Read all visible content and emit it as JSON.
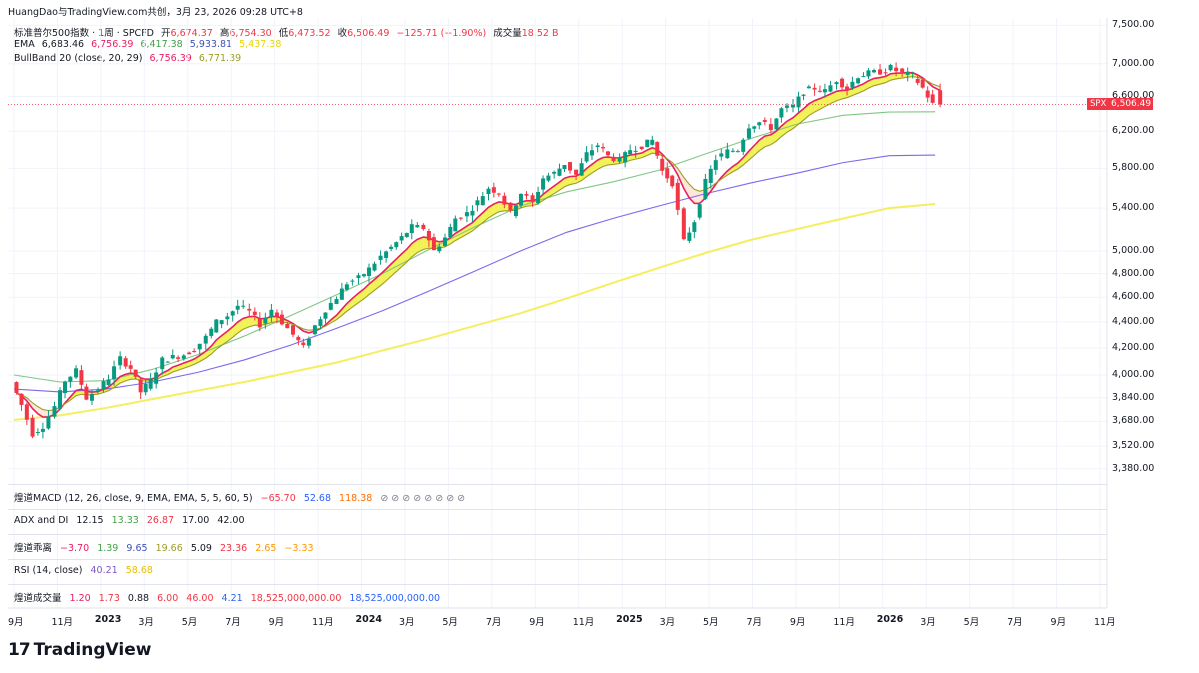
{
  "header": {
    "attribution": "HuangDao与TradingView.com共创，3月 23, 2026 09:28 UTC+8"
  },
  "legend": {
    "symbol": "标准普尔500指数 · 1周 · SPCFD",
    "open_label": "开",
    "open": "6,674.37",
    "high_label": "高",
    "high": "6,754.30",
    "low_label": "低",
    "low": "6,473.52",
    "close_label": "收",
    "close": "6,506.49",
    "change": "−125.71 (−1.90%)",
    "volume_label": "成交量",
    "volume": "18.52 B",
    "ema_label": "EMA",
    "ema_values": [
      "6,683.46",
      "6,756.39",
      "6,417.38",
      "5,933.81",
      "5,437.38"
    ],
    "bull_label": "BullBand 20 (close, 20, 29)",
    "bull_values": [
      "6,756.39",
      "6,771.39"
    ]
  },
  "colors": {
    "up": "#089981",
    "down": "#f23645",
    "ema1": "#e91e63",
    "ema2": "#9e9d24",
    "ema3": "#81c784",
    "ema4": "#7b68ee",
    "ema5": "#f5ee5f",
    "band": "#eef03a",
    "band_bear": "#fce4d6",
    "grid": "#f0f3fa"
  },
  "price_axis": [
    "7,500.00",
    "7,000.00",
    "6,600.00",
    "6,200.00",
    "5,800.00",
    "5,400.00",
    "5,000.00",
    "4,800.00",
    "4,600.00",
    "4,400.00",
    "4,200.00",
    "4,000.00",
    "3,840.00",
    "3,680.00",
    "3,520.00",
    "3,380.00"
  ],
  "last_price": {
    "symbol": "SPX",
    "value": "6,506.49"
  },
  "time_axis": [
    {
      "label": "9月",
      "year": false
    },
    {
      "label": "11月",
      "year": false
    },
    {
      "label": "2023",
      "year": true
    },
    {
      "label": "3月",
      "year": false
    },
    {
      "label": "5月",
      "year": false
    },
    {
      "label": "7月",
      "year": false
    },
    {
      "label": "9月",
      "year": false
    },
    {
      "label": "11月",
      "year": false
    },
    {
      "label": "2024",
      "year": true
    },
    {
      "label": "3月",
      "year": false
    },
    {
      "label": "5月",
      "year": false
    },
    {
      "label": "7月",
      "year": false
    },
    {
      "label": "9月",
      "year": false
    },
    {
      "label": "11月",
      "year": false
    },
    {
      "label": "2025",
      "year": true
    },
    {
      "label": "3月",
      "year": false
    },
    {
      "label": "5月",
      "year": false
    },
    {
      "label": "7月",
      "year": false
    },
    {
      "label": "9月",
      "year": false
    },
    {
      "label": "11月",
      "year": false
    },
    {
      "label": "2026",
      "year": true
    },
    {
      "label": "3月",
      "year": false
    },
    {
      "label": "5月",
      "year": false
    },
    {
      "label": "7月",
      "year": false
    },
    {
      "label": "9月",
      "year": false
    },
    {
      "label": "11月",
      "year": false
    }
  ],
  "panes": {
    "macd": {
      "label": "煌道MACD (12, 26, close, 9, EMA, EMA, 5, 5, 60, 5)",
      "values": [
        "−65.70",
        "52.68",
        "118.38"
      ],
      "empties": "⊘ ⊘ ⊘ ⊘ ⊘ ⊘ ⊘ ⊘"
    },
    "adx": {
      "label": "ADX and DI",
      "values": [
        "12.15",
        "13.33",
        "26.87",
        "17.00",
        "42.00"
      ]
    },
    "bias": {
      "label": "煌道乖离",
      "values": [
        "−3.70",
        "1.39",
        "9.65",
        "19.66",
        "5.09",
        "23.36",
        "2.65",
        "−3.33"
      ]
    },
    "rsi": {
      "label": "RSI (14, close)",
      "values": [
        "40.21",
        "58.68"
      ]
    },
    "vol": {
      "label": "煌道成交量",
      "values": [
        "1.20",
        "1.73",
        "0.88",
        "6.00",
        "46.00",
        "4.21",
        "18,525,000,000.00",
        "18,525,000,000.00"
      ]
    }
  },
  "brand": {
    "logo": "17",
    "name": "TradingView"
  },
  "chart_data": {
    "type": "candlestick",
    "title": "标准普尔500指数 · 1周 · SPCFD",
    "ylim": [
      3300,
      7600
    ],
    "yscale": "log",
    "x_start": "2022-09",
    "x_end": "2026-03",
    "close_series": [
      {
        "t": "2022-09-01",
        "v": 3950
      },
      {
        "t": "2022-09-15",
        "v": 3790
      },
      {
        "t": "2022-10-01",
        "v": 3600
      },
      {
        "t": "2022-10-15",
        "v": 3650
      },
      {
        "t": "2022-11-01",
        "v": 3780
      },
      {
        "t": "2022-11-15",
        "v": 3960
      },
      {
        "t": "2022-12-01",
        "v": 4030
      },
      {
        "t": "2022-12-15",
        "v": 3840
      },
      {
        "t": "2023-01-01",
        "v": 3900
      },
      {
        "t": "2023-01-15",
        "v": 3980
      },
      {
        "t": "2023-02-01",
        "v": 4120
      },
      {
        "t": "2023-02-15",
        "v": 4050
      },
      {
        "t": "2023-03-01",
        "v": 3880
      },
      {
        "t": "2023-03-15",
        "v": 3960
      },
      {
        "t": "2023-04-01",
        "v": 4110
      },
      {
        "t": "2023-04-15",
        "v": 4130
      },
      {
        "t": "2023-05-01",
        "v": 4150
      },
      {
        "t": "2023-05-15",
        "v": 4190
      },
      {
        "t": "2023-06-01",
        "v": 4280
      },
      {
        "t": "2023-06-15",
        "v": 4400
      },
      {
        "t": "2023-07-01",
        "v": 4450
      },
      {
        "t": "2023-07-15",
        "v": 4530
      },
      {
        "t": "2023-08-01",
        "v": 4480
      },
      {
        "t": "2023-08-15",
        "v": 4380
      },
      {
        "t": "2023-09-01",
        "v": 4500
      },
      {
        "t": "2023-09-15",
        "v": 4400
      },
      {
        "t": "2023-10-01",
        "v": 4300
      },
      {
        "t": "2023-10-15",
        "v": 4200
      },
      {
        "t": "2023-11-01",
        "v": 4370
      },
      {
        "t": "2023-11-15",
        "v": 4500
      },
      {
        "t": "2023-12-01",
        "v": 4600
      },
      {
        "t": "2023-12-15",
        "v": 4720
      },
      {
        "t": "2024-01-01",
        "v": 4760
      },
      {
        "t": "2024-01-15",
        "v": 4840
      },
      {
        "t": "2024-02-01",
        "v": 4950
      },
      {
        "t": "2024-02-15",
        "v": 5030
      },
      {
        "t": "2024-03-01",
        "v": 5120
      },
      {
        "t": "2024-03-15",
        "v": 5220
      },
      {
        "t": "2024-04-01",
        "v": 5210
      },
      {
        "t": "2024-04-15",
        "v": 5000
      },
      {
        "t": "2024-05-01",
        "v": 5120
      },
      {
        "t": "2024-05-15",
        "v": 5300
      },
      {
        "t": "2024-06-01",
        "v": 5350
      },
      {
        "t": "2024-06-15",
        "v": 5460
      },
      {
        "t": "2024-07-01",
        "v": 5600
      },
      {
        "t": "2024-07-15",
        "v": 5550
      },
      {
        "t": "2024-08-01",
        "v": 5350
      },
      {
        "t": "2024-08-15",
        "v": 5550
      },
      {
        "t": "2024-09-01",
        "v": 5450
      },
      {
        "t": "2024-09-15",
        "v": 5700
      },
      {
        "t": "2024-10-01",
        "v": 5750
      },
      {
        "t": "2024-10-15",
        "v": 5850
      },
      {
        "t": "2024-11-01",
        "v": 5730
      },
      {
        "t": "2024-11-15",
        "v": 5950
      },
      {
        "t": "2024-12-01",
        "v": 6050
      },
      {
        "t": "2024-12-15",
        "v": 5930
      },
      {
        "t": "2025-01-01",
        "v": 5880
      },
      {
        "t": "2025-01-15",
        "v": 6000
      },
      {
        "t": "2025-02-01",
        "v": 6040
      },
      {
        "t": "2025-02-15",
        "v": 6100
      },
      {
        "t": "2025-03-01",
        "v": 5770
      },
      {
        "t": "2025-03-15",
        "v": 5650
      },
      {
        "t": "2025-04-01",
        "v": 5080
      },
      {
        "t": "2025-04-15",
        "v": 5280
      },
      {
        "t": "2025-05-01",
        "v": 5660
      },
      {
        "t": "2025-05-15",
        "v": 5900
      },
      {
        "t": "2025-06-01",
        "v": 5980
      },
      {
        "t": "2025-06-15",
        "v": 6000
      },
      {
        "t": "2025-07-01",
        "v": 6260
      },
      {
        "t": "2025-07-15",
        "v": 6300
      },
      {
        "t": "2025-08-01",
        "v": 6240
      },
      {
        "t": "2025-08-15",
        "v": 6450
      },
      {
        "t": "2025-09-01",
        "v": 6480
      },
      {
        "t": "2025-09-15",
        "v": 6660
      },
      {
        "t": "2025-10-01",
        "v": 6700
      },
      {
        "t": "2025-10-15",
        "v": 6660
      },
      {
        "t": "2025-11-01",
        "v": 6800
      },
      {
        "t": "2025-11-15",
        "v": 6700
      },
      {
        "t": "2025-12-01",
        "v": 6850
      },
      {
        "t": "2025-12-15",
        "v": 6880
      },
      {
        "t": "2026-01-01",
        "v": 6900
      },
      {
        "t": "2026-01-15",
        "v": 6950
      },
      {
        "t": "2026-02-01",
        "v": 6880
      },
      {
        "t": "2026-02-15",
        "v": 6850
      },
      {
        "t": "2026-03-01",
        "v": 6700
      },
      {
        "t": "2026-03-15",
        "v": 6506
      }
    ],
    "ema_series": [
      {
        "name": "EMA 200w",
        "color": "#f5ee5f",
        "values": [
          3690,
          3720,
          3770,
          3830,
          3890,
          3950,
          4020,
          4090,
          4180,
          4270,
          4370,
          4470,
          4590,
          4720,
          4850,
          4980,
          5100,
          5200,
          5300,
          5400,
          5440
        ]
      },
      {
        "name": "EMA 100w",
        "color": "#7b68ee",
        "values": [
          3900,
          3880,
          3900,
          3950,
          4020,
          4110,
          4220,
          4350,
          4490,
          4650,
          4820,
          5000,
          5170,
          5300,
          5420,
          5540,
          5650,
          5750,
          5860,
          5933,
          5940
        ]
      },
      {
        "name": "EMA 60w",
        "color": "#81c784",
        "values": [
          4000,
          3950,
          3960,
          4040,
          4150,
          4290,
          4450,
          4620,
          4800,
          5010,
          5220,
          5420,
          5560,
          5660,
          5780,
          5950,
          6120,
          6280,
          6380,
          6417,
          6420
        ]
      }
    ]
  }
}
